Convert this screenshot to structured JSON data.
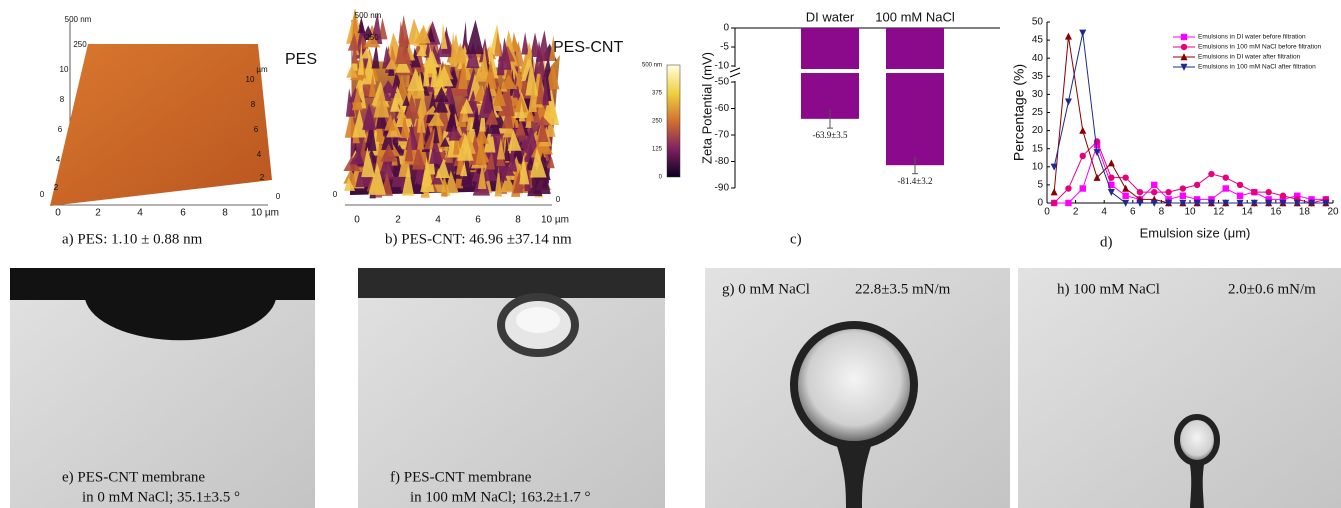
{
  "panels": {
    "a": {
      "caption": "a)    PES: 1.10 ± 0.88 nm",
      "name": "PES",
      "z_labels": [
        "500 nm",
        "250"
      ],
      "y_labels": [
        "10",
        "8",
        "6",
        "4",
        "2"
      ],
      "right_labels": [
        "µm",
        "10",
        "8",
        "6",
        "4",
        "2"
      ],
      "x_labels": [
        "0",
        "2",
        "4",
        "6",
        "8",
        "10 µm"
      ],
      "origin_labels": [
        "0",
        "0"
      ]
    },
    "b": {
      "caption": "b)  PES-CNT: 46.96 ±37.14 nm",
      "name": "PES-CNT",
      "z_labels": [
        "500 nm",
        "250"
      ],
      "x_labels": [
        "0",
        "2",
        "4",
        "6",
        "8",
        "10 µm"
      ],
      "origin_labels": [
        "0",
        "0"
      ],
      "colorbar_labels": [
        "500 nm",
        "375",
        "250",
        "125",
        "0"
      ]
    },
    "c": {
      "caption": "c)"
    },
    "d": {
      "caption": "d)"
    },
    "e": {
      "caption": [
        "e) PES-CNT membrane",
        "in 0 mM NaCl; 35.1±3.5 °"
      ]
    },
    "f": {
      "caption": [
        "f) PES-CNT membrane",
        "in 100 mM NaCl; 163.2±1.7 °"
      ]
    },
    "g": {
      "label": "g) 0 mM NaCl",
      "tension": "22.8±3.5 mN/m"
    },
    "h": {
      "label": "h) 100 mM NaCl",
      "tension": "2.0±0.6 mN/m"
    }
  },
  "chart_data": [
    {
      "type": "bar",
      "ylabel": "Zeta Potential (mV)",
      "categories": [
        "DI water",
        "100 mM NaCl"
      ],
      "values": [
        -63.9,
        -81.4
      ],
      "errors": [
        3.5,
        3.2
      ],
      "value_labels": [
        "-63.9±3.5",
        "-81.4±3.2"
      ],
      "color": "#8b0a8b",
      "ylim": [
        -90,
        0
      ],
      "ybreak": [
        -50,
        -10
      ],
      "yticks": [
        0,
        -5,
        -10,
        -50,
        -60,
        -70,
        -80,
        -90
      ]
    },
    {
      "type": "line",
      "xlabel": "Emulsion size (μm)",
      "ylabel": "Percentage (%)",
      "x": [
        0.5,
        1.5,
        2.5,
        3.5,
        4.5,
        5.5,
        6.5,
        7.5,
        8.5,
        9.5,
        10.5,
        11.5,
        12.5,
        13.5,
        14.5,
        15.5,
        16.5,
        17.5,
        18.5,
        19.5
      ],
      "xlim": [
        0,
        20
      ],
      "xticks": [
        0,
        2,
        4,
        6,
        8,
        10,
        12,
        14,
        16,
        18,
        20
      ],
      "ylim": [
        0,
        50
      ],
      "yticks": [
        0,
        5,
        10,
        15,
        20,
        25,
        30,
        35,
        40,
        45,
        50
      ],
      "legend": "upper right",
      "series": [
        {
          "name": "Emulsions in DI water before filtration",
          "color": "#ff00ff",
          "marker": "square",
          "values": [
            0,
            0,
            4,
            16,
            5,
            2,
            1,
            5,
            1,
            2,
            1,
            1,
            4,
            2,
            3,
            1,
            1,
            2,
            1,
            1
          ]
        },
        {
          "name": "Emulsions in 100 mM NaCl before filtration",
          "color": "#e6007e",
          "marker": "circle",
          "values": [
            0,
            4,
            13,
            17,
            7,
            7,
            3,
            3,
            3,
            4,
            5,
            8,
            7,
            5,
            3,
            3,
            2,
            1,
            0,
            1
          ]
        },
        {
          "name": "Emulsions in DI water after filtration",
          "color": "#8b0000",
          "marker": "triangle-up",
          "values": [
            3,
            46,
            20,
            7,
            11,
            4,
            1,
            1,
            0,
            0,
            0,
            0,
            0,
            0,
            0,
            0,
            0,
            0,
            0,
            0
          ]
        },
        {
          "name": "Emulsions in 100 mM NaCl after filtration",
          "color": "#1f2a8f",
          "marker": "triangle-down",
          "values": [
            10,
            28,
            47,
            14,
            3,
            0,
            0,
            0,
            0,
            0,
            0,
            0,
            0,
            0,
            0,
            0,
            0,
            0,
            0,
            0
          ]
        }
      ]
    }
  ]
}
